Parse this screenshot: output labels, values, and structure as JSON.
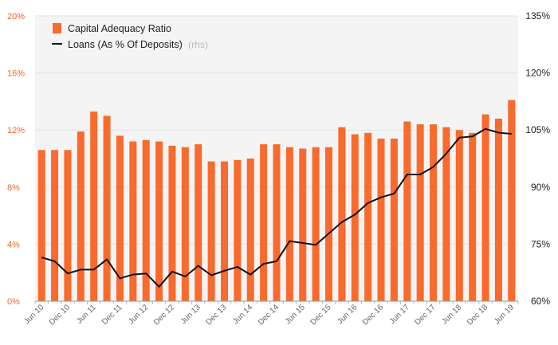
{
  "chart_data": {
    "type": "bar",
    "categories": [
      "Jun 10",
      "Sep 10",
      "Dec 10",
      "Mar 11",
      "Jun 11",
      "Sep 11",
      "Dec 11",
      "Mar 12",
      "Jun 12",
      "Sep 12",
      "Dec 12",
      "Mar 13",
      "Jun 13",
      "Sep 13",
      "Dec 13",
      "Mar 14",
      "Jun 14",
      "Sep 14",
      "Dec 14",
      "Mar 15",
      "Jun 15",
      "Sep 15",
      "Dec 15",
      "Mar 16",
      "Jun 16",
      "Sep 16",
      "Dec 16",
      "Mar 17",
      "Jun 17",
      "Sep 17",
      "Dec 17",
      "Mar 18",
      "Jun 18",
      "Sep 18",
      "Dec 18",
      "Mar 19",
      "Jun 19"
    ],
    "x_tick_labels": [
      "Jun 10",
      "Dec 10",
      "Jun 11",
      "Dec 11",
      "Jun 12",
      "Dec 12",
      "Jun 13",
      "Dec 13",
      "Jun 14",
      "Dec 14",
      "Jun 15",
      "Dec 15",
      "Jun 16",
      "Dec 16",
      "Jun 17",
      "Dec 17",
      "Jun 18",
      "Dec 18",
      "Jun 19"
    ],
    "series": [
      {
        "name": "Capital Adequacy Ratio",
        "axis": "left",
        "type": "bar",
        "color": "#f96a2c",
        "values": [
          10.6,
          10.6,
          10.6,
          11.9,
          13.3,
          13.0,
          11.6,
          11.2,
          11.3,
          11.2,
          10.9,
          10.8,
          11.0,
          9.8,
          9.8,
          9.9,
          10.0,
          11.0,
          11.0,
          10.8,
          10.7,
          10.8,
          10.8,
          12.2,
          11.7,
          11.8,
          11.4,
          11.4,
          12.6,
          12.4,
          12.4,
          12.2,
          12.0,
          11.8,
          13.1,
          12.8,
          14.1
        ]
      },
      {
        "name": "Loans (As % Of Deposits)",
        "name_suffix": "(rhs)",
        "axis": "right",
        "type": "line",
        "color": "#111111",
        "values": [
          71.5,
          70.5,
          67.3,
          68.3,
          68.3,
          71.0,
          66.0,
          67.0,
          67.3,
          63.8,
          67.8,
          66.5,
          69.3,
          66.8,
          68.0,
          69.0,
          67.0,
          69.8,
          70.5,
          75.8,
          75.3,
          74.8,
          77.8,
          80.8,
          82.8,
          85.8,
          87.3,
          88.3,
          93.3,
          93.3,
          95.3,
          98.8,
          103.0,
          103.3,
          105.3,
          104.3,
          104.0
        ]
      }
    ],
    "y_left": {
      "min": 0,
      "max": 20,
      "ticks": [
        "0%",
        "4%",
        "8%",
        "12%",
        "16%",
        "20%"
      ]
    },
    "y_right": {
      "min": 60,
      "max": 135,
      "ticks": [
        "60%",
        "75%",
        "90%",
        "105%",
        "120%",
        "135%"
      ]
    },
    "grid": true,
    "legend_position": "top-left",
    "title": "",
    "xlabel": "",
    "ylabel": ""
  }
}
